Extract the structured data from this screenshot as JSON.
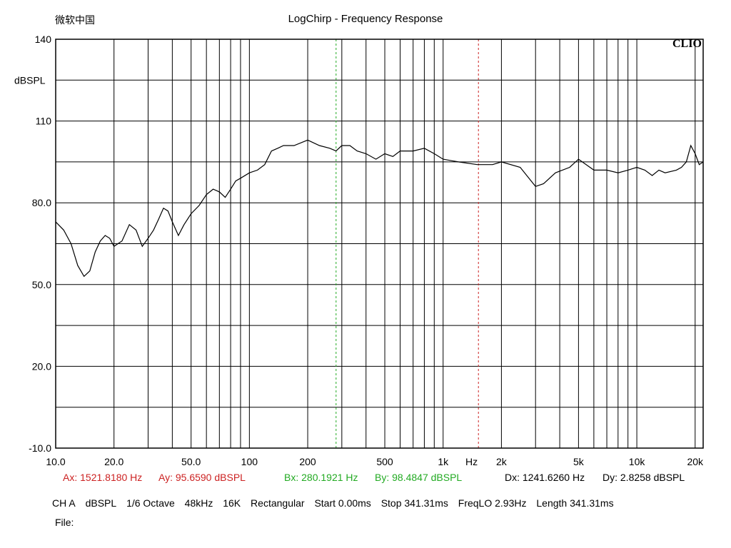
{
  "corner_label": "微软中国",
  "chart_data": {
    "type": "line",
    "title": "LogChirp - Frequency Response",
    "brand": "CLIO",
    "ylabel": "dBSPL",
    "xlabel": "Hz",
    "x_scale": "log",
    "xlim": [
      10,
      22000
    ],
    "ylim": [
      -10,
      140
    ],
    "grid": true,
    "y_ticks": [
      "140",
      "110",
      "80.0",
      "50.0",
      "20.0",
      "-10.0"
    ],
    "x_ticks": [
      "10.0",
      "20.0",
      "50.0",
      "100",
      "200",
      "500",
      "1k",
      "2k",
      "5k",
      "10k",
      "20k"
    ],
    "series": [
      {
        "color": "#000000",
        "x": [
          10,
          11,
          12,
          13,
          14,
          15,
          16,
          17,
          18,
          19,
          20,
          22,
          24,
          26,
          28,
          30,
          32,
          34,
          36,
          38,
          40,
          43,
          46,
          50,
          55,
          60,
          65,
          70,
          75,
          80,
          85,
          90,
          100,
          110,
          120,
          130,
          140,
          150,
          170,
          200,
          230,
          260,
          280,
          300,
          330,
          360,
          400,
          450,
          500,
          550,
          600,
          700,
          800,
          900,
          1000,
          1200,
          1500,
          1800,
          2000,
          2500,
          3000,
          3300,
          3800,
          4500,
          5000,
          6000,
          7000,
          8000,
          9000,
          10000,
          11000,
          12000,
          13000,
          14000,
          16000,
          17000,
          18000,
          19000,
          20000,
          21000,
          22000
        ],
        "y": [
          73,
          70,
          65,
          57,
          53,
          55,
          62,
          66,
          68,
          67,
          64,
          66,
          72,
          70,
          64,
          67,
          70,
          74,
          78,
          77,
          73,
          68,
          72,
          76,
          79,
          83,
          85,
          84,
          82,
          85,
          88,
          89,
          91,
          92,
          94,
          99,
          100,
          101,
          101,
          103,
          101,
          100,
          99,
          101,
          101,
          99,
          98,
          96,
          98,
          97,
          99,
          99,
          100,
          98,
          96,
          95,
          94,
          94,
          95,
          93,
          86,
          87,
          91,
          93,
          96,
          92,
          92,
          91,
          92,
          93,
          92,
          90,
          92,
          91,
          92,
          93,
          95,
          101,
          98,
          94,
          95
        ]
      }
    ],
    "cursors": [
      {
        "color": "#cc2222",
        "x": 1521.818
      },
      {
        "color": "#22aa22",
        "x": 280.1921
      }
    ]
  },
  "readouts": {
    "ax": "Ax: 1521.8180 Hz",
    "ay": "Ay: 95.6590 dBSPL",
    "bx": "Bx: 280.1921 Hz",
    "by": "By: 98.4847 dBSPL",
    "dx": "Dx: 1241.6260 Hz",
    "dy": "Dy: 2.8258 dBSPL"
  },
  "settings": {
    "channel": "CH A",
    "units": "dBSPL",
    "smoothing": "1/6 Octave",
    "rate": "48kHz",
    "size": "16K",
    "window": "Rectangular",
    "start": "Start 0.00ms",
    "stop": "Stop 341.31ms",
    "freqlo": "FreqLO 2.93Hz",
    "length": "Length 341.31ms"
  },
  "file_label": "File:"
}
